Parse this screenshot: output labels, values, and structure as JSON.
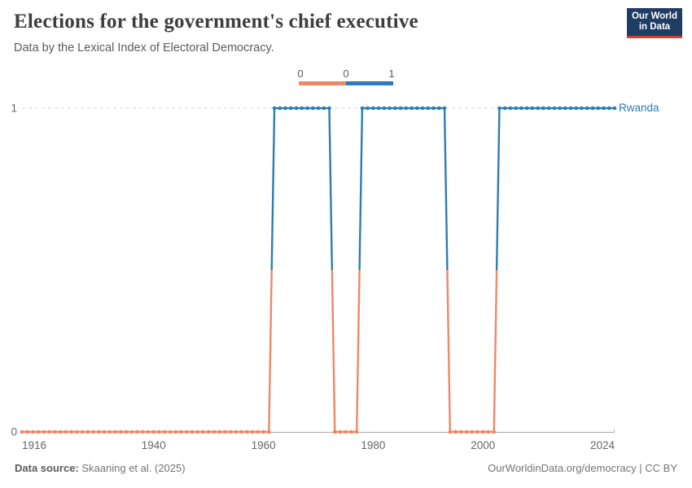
{
  "header": {
    "title": "Elections for the government's chief executive",
    "subtitle": "Data by the Lexical Index of Electoral Democracy.",
    "logo_line1": "Our World",
    "logo_line2": "in Data"
  },
  "legend": {
    "edge_labels": [
      "0",
      "0",
      "1"
    ]
  },
  "chart_data": {
    "type": "line",
    "subtype": "step-line-with-yearly-points",
    "title": "Elections for the government's chief executive",
    "entity": "Rwanda",
    "xlim": [
      1916,
      2024
    ],
    "ylim": [
      0,
      1
    ],
    "x_ticks": [
      "1916",
      "1940",
      "1960",
      "1980",
      "2000",
      "2024"
    ],
    "y_ticks": [
      "0",
      "1"
    ],
    "grid": "dashed line at y=1 only",
    "legend_position": "top-center",
    "colors": {
      "value0": "#EE8766",
      "value1": "#2F7BB5",
      "gridline": "#d7d7d7",
      "axis": "#a9a9a9",
      "tick_text": "#666666"
    },
    "segments": [
      {
        "start": 1916,
        "end": 1961,
        "value": 0
      },
      {
        "start": 1962,
        "end": 1972,
        "value": 1
      },
      {
        "start": 1973,
        "end": 1977,
        "value": 0
      },
      {
        "start": 1978,
        "end": 1993,
        "value": 1
      },
      {
        "start": 1994,
        "end": 2002,
        "value": 0
      },
      {
        "start": 2003,
        "end": 2024,
        "value": 1
      }
    ]
  },
  "footer": {
    "source_label": "Data source:",
    "source": "Skaaning et al. (2025)",
    "url_license": "OurWorldinData.org/democracy | CC BY"
  }
}
